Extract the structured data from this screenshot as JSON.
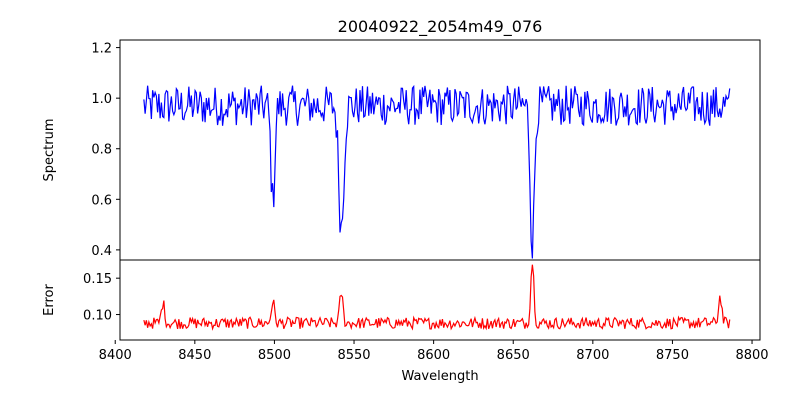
{
  "chart_data": [
    {
      "type": "line",
      "title": "20040922_2054m49_076",
      "xlabel": "",
      "ylabel": "Spectrum",
      "xlim": [
        8403,
        8805
      ],
      "ylim": [
        0.36,
        1.23
      ],
      "yticks": [
        0.4,
        0.6,
        0.8,
        1.0,
        1.2
      ],
      "ytick_labels": [
        "0.4",
        "0.6",
        "0.8",
        "1.0",
        "1.2"
      ],
      "x_range": [
        8418,
        8786
      ],
      "line_color": "#0000ff",
      "noise_amplitude": 0.08,
      "continuum": 0.97,
      "absorption_lines": [
        {
          "center": 8499,
          "depth": 0.38,
          "width": 1.2
        },
        {
          "center": 8542,
          "depth": 0.48,
          "width": 1.6
        },
        {
          "center": 8662,
          "depth": 0.55,
          "width": 1.3
        }
      ]
    },
    {
      "type": "line",
      "title": "",
      "xlabel": "Wavelength",
      "ylabel": "Error",
      "xlim": [
        8403,
        8805
      ],
      "ylim": [
        0.065,
        0.175
      ],
      "yticks": [
        0.1,
        0.15
      ],
      "ytick_labels": [
        "0.10",
        "0.15"
      ],
      "xticks": [
        8400,
        8450,
        8500,
        8550,
        8600,
        8650,
        8700,
        8750,
        8800
      ],
      "xtick_labels": [
        "8400",
        "8450",
        "8500",
        "8550",
        "8600",
        "8650",
        "8700",
        "8750",
        "8800"
      ],
      "x_range": [
        8418,
        8786
      ],
      "line_color": "#ff0000",
      "baseline": 0.085,
      "noise_amplitude": 0.008,
      "peaks": [
        {
          "center": 8430,
          "height": 0.113
        },
        {
          "center": 8499,
          "height": 0.115
        },
        {
          "center": 8542,
          "height": 0.127
        },
        {
          "center": 8662,
          "height": 0.17
        },
        {
          "center": 8780,
          "height": 0.122
        }
      ]
    }
  ]
}
